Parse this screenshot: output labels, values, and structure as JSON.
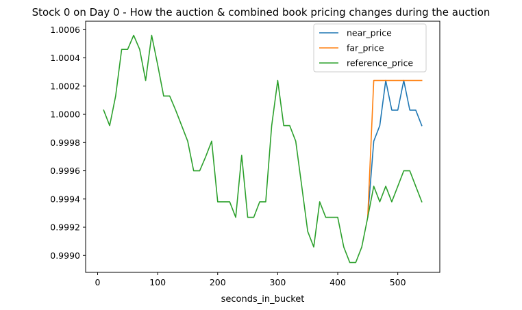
{
  "chart_data": {
    "type": "line",
    "title": "Stock 0 on Day 0 - How the auction & combined book pricing changes during the auction",
    "xlabel": "seconds_in_bucket",
    "ylabel": "",
    "xlim": [
      -20,
      570
    ],
    "ylim": [
      0.99888,
      1.00066
    ],
    "x_ticks": [
      0,
      100,
      200,
      300,
      400,
      500
    ],
    "y_ticks": [
      0.999,
      0.9992,
      0.9994,
      0.9996,
      0.9998,
      1.0,
      1.0002,
      1.0004,
      1.0006
    ],
    "y_tick_labels": [
      "0.9990",
      "0.9992",
      "0.9994",
      "0.9996",
      "0.9998",
      "1.0000",
      "1.0002",
      "1.0004",
      "1.0006"
    ],
    "grid": false,
    "legend": "upper-right",
    "x": [
      10,
      20,
      30,
      40,
      50,
      60,
      70,
      80,
      90,
      100,
      110,
      120,
      130,
      140,
      150,
      160,
      170,
      180,
      190,
      200,
      210,
      220,
      230,
      240,
      250,
      260,
      270,
      280,
      290,
      300,
      310,
      320,
      330,
      340,
      350,
      360,
      370,
      380,
      390,
      400,
      410,
      420,
      430,
      440,
      450,
      460,
      470,
      480,
      490,
      500,
      510,
      520,
      530,
      540
    ],
    "series": [
      {
        "name": "near_price",
        "color": "#1f77b4",
        "x": [
          450,
          460,
          470,
          480,
          490,
          500,
          510,
          520,
          530,
          540
        ],
        "values": [
          0.99927,
          0.99981,
          0.99992,
          1.00024,
          1.00003,
          1.00003,
          1.00024,
          1.00003,
          1.00003,
          0.99992
        ]
      },
      {
        "name": "far_price",
        "color": "#ff7f0e",
        "x": [
          450,
          460,
          470,
          480,
          490,
          500,
          510,
          520,
          530,
          540
        ],
        "values": [
          0.99927,
          1.00024,
          1.00024,
          1.00024,
          1.00024,
          1.00024,
          1.00024,
          1.00024,
          1.00024,
          1.00024
        ]
      },
      {
        "name": "reference_price",
        "color": "#2ca02c",
        "x": [
          10,
          20,
          30,
          40,
          50,
          60,
          70,
          80,
          90,
          100,
          110,
          120,
          130,
          140,
          150,
          160,
          170,
          180,
          190,
          200,
          210,
          220,
          230,
          240,
          250,
          260,
          270,
          280,
          290,
          300,
          310,
          320,
          330,
          340,
          350,
          360,
          370,
          380,
          390,
          400,
          410,
          420,
          430,
          440,
          450,
          460,
          470,
          480,
          490,
          500,
          510,
          520,
          530,
          540
        ],
        "values": [
          1.00003,
          0.99992,
          1.00013,
          1.00046,
          1.00046,
          1.00056,
          1.00046,
          1.00024,
          1.00056,
          1.00035,
          1.00013,
          1.00013,
          1.00003,
          0.99992,
          0.99981,
          0.9996,
          0.9996,
          0.9997,
          0.99981,
          0.99938,
          0.99938,
          0.99938,
          0.99927,
          0.99971,
          0.99927,
          0.99927,
          0.99938,
          0.99938,
          0.99992,
          1.00024,
          0.99992,
          0.99992,
          0.99981,
          0.99949,
          0.99917,
          0.99906,
          0.99938,
          0.99927,
          0.99927,
          0.99927,
          0.99906,
          0.99895,
          0.99895,
          0.99906,
          0.99927,
          0.99949,
          0.99938,
          0.99949,
          0.99938,
          0.99949,
          0.9996,
          0.9996,
          0.99949,
          0.99938
        ]
      }
    ]
  }
}
